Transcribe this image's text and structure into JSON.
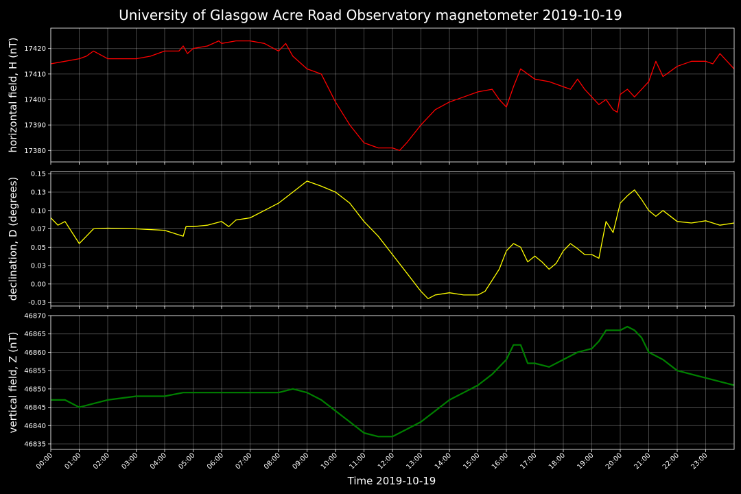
{
  "chart_data": [
    {
      "type": "line",
      "title": "University of Glasgow Acre Road Observatory magnetometer 2019-10-19",
      "ylabel": "horizontal field, H (nT)",
      "xlabel": "",
      "color": "#ff0000",
      "ylim": [
        17375.5,
        17428.0
      ],
      "yticks": [
        17380,
        17390,
        17400,
        17410,
        17420
      ],
      "xlim": [
        0,
        24
      ],
      "series": [
        {
          "x": [
            0,
            0.5,
            1,
            1.25,
            1.5,
            2,
            2.5,
            3,
            3.5,
            4,
            4.5,
            4.65,
            4.8,
            5,
            5.5,
            5.9,
            6,
            6.5,
            7,
            7.5,
            8,
            8.25,
            8.5,
            9,
            9.5,
            10,
            10.5,
            11,
            11.5,
            12,
            12.25,
            12.5,
            13,
            13.5,
            14,
            14.5,
            15,
            15.5,
            15.75,
            16,
            16.25,
            16.5,
            17,
            17.5,
            18,
            18.25,
            18.5,
            18.75,
            19,
            19.25,
            19.5,
            19.75,
            19.9,
            20,
            20.25,
            20.5,
            21,
            21.25,
            21.5,
            22,
            22.5,
            23,
            23.25,
            23.5,
            24
          ],
          "y": [
            17414,
            17415,
            17416,
            17417,
            17419,
            17416,
            17416,
            17416,
            17417,
            17419,
            17419,
            17421,
            17418,
            17420,
            17421,
            17423,
            17422,
            17423,
            17423,
            17422,
            17419,
            17422,
            17417,
            17412,
            17410,
            17399,
            17390,
            17383,
            17381,
            17381,
            17380,
            17383,
            17390,
            17396,
            17399,
            17401,
            17403,
            17404,
            17400,
            17397,
            17405,
            17412,
            17408,
            17407,
            17405,
            17404,
            17408,
            17404,
            17401,
            17398,
            17400,
            17396,
            17395,
            17402,
            17404,
            17401,
            17407,
            17415,
            17409,
            17413,
            17415,
            17415,
            17414,
            17418,
            17412
          ]
        }
      ]
    },
    {
      "type": "line",
      "title": "",
      "ylabel": "declination, D (degrees)",
      "xlabel": "",
      "color": "#ffff00",
      "ylim": [
        -0.03,
        0.153
      ],
      "yticks": [
        -0.025,
        0.0,
        0.025,
        0.05,
        0.075,
        0.1,
        0.125,
        0.15
      ],
      "xlim": [
        0,
        24
      ],
      "series": [
        {
          "x": [
            0,
            0.25,
            0.5,
            0.75,
            1,
            1.25,
            1.5,
            2,
            3,
            4,
            4.65,
            4.75,
            5,
            5.5,
            6,
            6.25,
            6.5,
            7,
            7.5,
            8,
            8.5,
            9,
            9.5,
            10,
            10.5,
            11,
            11.5,
            12,
            12.5,
            13,
            13.25,
            13.5,
            14,
            14.5,
            15,
            15.25,
            15.5,
            15.75,
            16,
            16.25,
            16.5,
            16.75,
            17,
            17.25,
            17.5,
            17.75,
            18,
            18.25,
            18.5,
            18.75,
            19,
            19.25,
            19.5,
            19.75,
            20,
            20.25,
            20.5,
            20.75,
            21,
            21.25,
            21.5,
            22,
            22.5,
            23,
            23.5,
            24
          ],
          "y": [
            0.09,
            0.08,
            0.085,
            0.07,
            0.055,
            0.065,
            0.075,
            0.076,
            0.075,
            0.073,
            0.065,
            0.078,
            0.078,
            0.08,
            0.085,
            0.078,
            0.087,
            0.09,
            0.1,
            0.11,
            0.125,
            0.14,
            0.133,
            0.125,
            0.11,
            0.085,
            0.065,
            0.04,
            0.015,
            -0.01,
            -0.02,
            -0.015,
            -0.012,
            -0.015,
            -0.015,
            -0.01,
            0.005,
            0.02,
            0.045,
            0.055,
            0.05,
            0.03,
            0.038,
            0.03,
            0.02,
            0.028,
            0.045,
            0.055,
            0.048,
            0.04,
            0.04,
            0.035,
            0.085,
            0.07,
            0.11,
            0.12,
            0.128,
            0.115,
            0.1,
            0.092,
            0.1,
            0.085,
            0.083,
            0.086,
            0.08,
            0.083
          ]
        }
      ]
    },
    {
      "type": "line",
      "title": "",
      "ylabel": "vertical field, Z (nT)",
      "xlabel": "Time 2019-10-19",
      "color": "#008000",
      "ylim": [
        46833.5,
        46870.0
      ],
      "yticks": [
        46835,
        46840,
        46845,
        46850,
        46855,
        46860,
        46865,
        46870
      ],
      "xlim": [
        0,
        24
      ],
      "series": [
        {
          "x": [
            0,
            0.5,
            1,
            1.5,
            2,
            3,
            4,
            4.65,
            5,
            6,
            7,
            8,
            8.5,
            9,
            9.5,
            10,
            10.5,
            11,
            11.5,
            12,
            12.5,
            13,
            13.5,
            14,
            14.5,
            15,
            15.5,
            16,
            16.25,
            16.5,
            16.75,
            17,
            17.5,
            18,
            18.5,
            19,
            19.25,
            19.5,
            20,
            20.25,
            20.5,
            20.75,
            21,
            21.5,
            22,
            22.5,
            23,
            23.5,
            24
          ],
          "y": [
            46847,
            46847,
            46845,
            46846,
            46847,
            46848,
            46848,
            46849,
            46849,
            46849,
            46849,
            46849,
            46850,
            46849,
            46847,
            46844,
            46841,
            46838,
            46837,
            46837,
            46839,
            46841,
            46844,
            46847,
            46849,
            46851,
            46854,
            46858,
            46862,
            46862,
            46857,
            46857,
            46856,
            46858,
            46860,
            46861,
            46863,
            46866,
            46866,
            46867,
            46866,
            46864,
            46860,
            46858,
            46855,
            46854,
            46853,
            46852,
            46851
          ]
        }
      ]
    }
  ],
  "xaxis": {
    "tick_labels": [
      "00:00",
      "01:00",
      "02:00",
      "03:00",
      "04:00",
      "05:00",
      "06:00",
      "07:00",
      "08:00",
      "09:00",
      "10:00",
      "11:00",
      "12:00",
      "13:00",
      "14:00",
      "15:00",
      "16:00",
      "17:00",
      "18:00",
      "19:00",
      "20:00",
      "21:00",
      "22:00",
      "23:00"
    ],
    "tick_hours": [
      0,
      1,
      2,
      3,
      4,
      5,
      6,
      7,
      8,
      9,
      10,
      11,
      12,
      13,
      14,
      15,
      16,
      17,
      18,
      19,
      20,
      21,
      22,
      23
    ]
  },
  "style": {
    "background": "#000000",
    "grid": true,
    "text_color": "#ffffff"
  }
}
